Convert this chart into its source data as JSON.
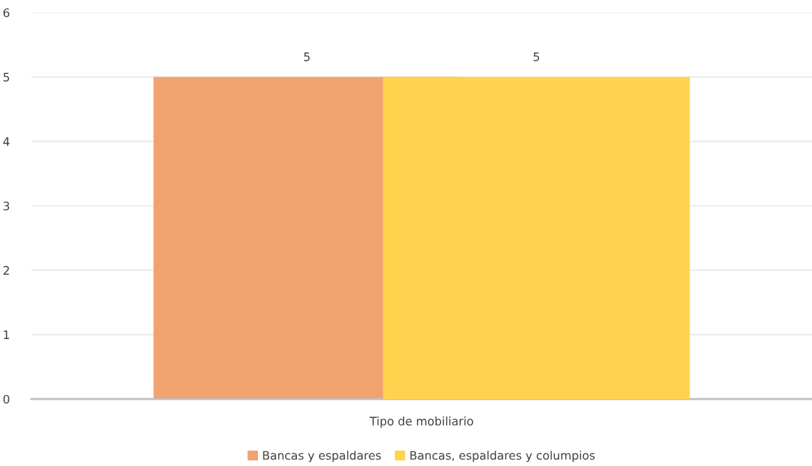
{
  "chart_data": {
    "type": "bar",
    "categories": [
      "Tipo de mobiliario"
    ],
    "series": [
      {
        "name": "Bancas y espaldares",
        "color": "#f0a36e",
        "values": [
          5
        ]
      },
      {
        "name": "Bancas, espaldares y columpios",
        "color": "#ffd34d",
        "values": [
          5
        ]
      }
    ],
    "ylim": [
      0,
      6
    ],
    "yticks": [
      0,
      1,
      2,
      3,
      4,
      5,
      6
    ],
    "grid": "y",
    "legend": "bottom",
    "data_labels": true
  }
}
